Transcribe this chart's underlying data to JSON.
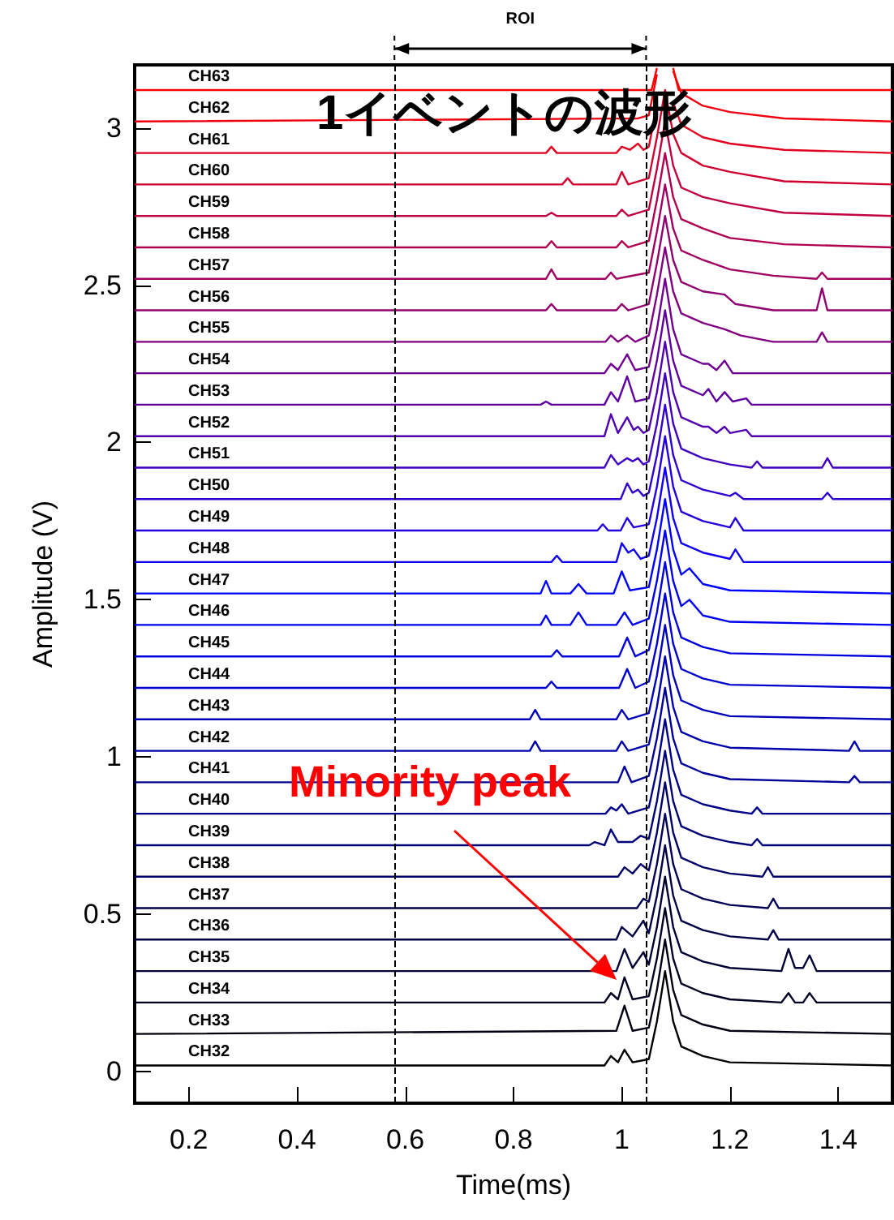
{
  "chart_data": {
    "type": "line",
    "title": "1イベントの波形",
    "xlabel": "Time(ms)",
    "ylabel": "Amplitude (V)",
    "xlim": [
      0.1,
      1.5
    ],
    "ylim": [
      -0.1,
      3.2
    ],
    "xticks": [
      0.2,
      0.4,
      0.6,
      0.8,
      1,
      1.2,
      1.4
    ],
    "yticks": [
      0,
      0.5,
      1,
      1.5,
      2,
      2.5,
      3
    ],
    "ref_lines": [
      {
        "axis": "x",
        "value": 0.58,
        "line_style": "dashed",
        "color": "#000000"
      },
      {
        "axis": "x",
        "value": 1.045,
        "line_style": "dashed",
        "color": "#000000"
      }
    ],
    "annotations": [
      "ROI",
      "Minority peak"
    ],
    "series": [
      {
        "name": "CH32",
        "color": "#000000",
        "x": [
          0.1,
          0.968,
          0.98,
          0.993,
          1.005,
          1.02,
          1.05,
          1.065,
          1.08,
          1.095,
          1.11,
          1.15,
          1.2,
          1.5
        ],
        "values": [
          0.02,
          0.02,
          0.05,
          0.03,
          0.07,
          0.03,
          0.04,
          0.16,
          0.32,
          0.16,
          0.08,
          0.05,
          0.03,
          0.02
        ]
      },
      {
        "name": "CH33",
        "color": "#000011",
        "x": [
          0.1,
          0.99,
          1.005,
          1.02,
          1.05,
          1.065,
          1.08,
          1.095,
          1.11,
          1.15,
          1.2,
          1.5
        ],
        "values": [
          0.12,
          0.13,
          0.21,
          0.13,
          0.14,
          0.26,
          0.42,
          0.26,
          0.18,
          0.15,
          0.13,
          0.12
        ]
      },
      {
        "name": "CH34",
        "color": "#000022",
        "x": [
          0.1,
          0.968,
          0.98,
          0.993,
          1.005,
          1.02,
          1.05,
          1.065,
          1.08,
          1.095,
          1.11,
          1.15,
          1.2,
          1.295,
          1.308,
          1.32,
          1.335,
          1.347,
          1.36,
          1.5
        ],
        "values": [
          0.22,
          0.22,
          0.25,
          0.23,
          0.3,
          0.23,
          0.24,
          0.36,
          0.52,
          0.36,
          0.28,
          0.25,
          0.23,
          0.22,
          0.25,
          0.22,
          0.22,
          0.25,
          0.22,
          0.22
        ]
      },
      {
        "name": "CH35",
        "color": "#000033",
        "x": [
          0.1,
          0.99,
          1.005,
          1.02,
          1.04,
          1.05,
          1.065,
          1.08,
          1.095,
          1.11,
          1.15,
          1.2,
          1.295,
          1.308,
          1.32,
          1.335,
          1.347,
          1.36,
          1.5
        ],
        "values": [
          0.32,
          0.32,
          0.39,
          0.33,
          0.38,
          0.34,
          0.46,
          0.62,
          0.46,
          0.38,
          0.35,
          0.33,
          0.32,
          0.39,
          0.33,
          0.33,
          0.37,
          0.32,
          0.32
        ]
      },
      {
        "name": "CH36",
        "color": "#000044",
        "x": [
          0.1,
          0.99,
          1.0,
          1.02,
          1.04,
          1.05,
          1.065,
          1.08,
          1.095,
          1.11,
          1.15,
          1.2,
          1.27,
          1.28,
          1.29,
          1.5
        ],
        "values": [
          0.42,
          0.42,
          0.46,
          0.43,
          0.48,
          0.44,
          0.56,
          0.72,
          0.56,
          0.48,
          0.45,
          0.43,
          0.42,
          0.45,
          0.42,
          0.42
        ]
      },
      {
        "name": "CH37",
        "color": "#000055",
        "x": [
          0.1,
          1.028,
          1.04,
          1.05,
          1.065,
          1.08,
          1.095,
          1.11,
          1.15,
          1.2,
          1.27,
          1.28,
          1.29,
          1.5
        ],
        "values": [
          0.52,
          0.52,
          0.55,
          0.54,
          0.66,
          0.82,
          0.66,
          0.58,
          0.55,
          0.53,
          0.52,
          0.55,
          0.52,
          0.52
        ]
      },
      {
        "name": "CH38",
        "color": "#000066",
        "x": [
          0.1,
          0.993,
          1.005,
          1.02,
          1.035,
          1.05,
          1.065,
          1.08,
          1.095,
          1.11,
          1.15,
          1.2,
          1.26,
          1.27,
          1.28,
          1.5
        ],
        "values": [
          0.62,
          0.62,
          0.65,
          0.63,
          0.66,
          0.64,
          0.76,
          0.92,
          0.76,
          0.68,
          0.65,
          0.63,
          0.62,
          0.65,
          0.62,
          0.62
        ]
      },
      {
        "name": "CH39",
        "color": "#000077",
        "x": [
          0.1,
          0.94,
          0.95,
          0.968,
          0.98,
          0.993,
          1.02,
          1.035,
          1.05,
          1.065,
          1.08,
          1.095,
          1.11,
          1.15,
          1.2,
          1.24,
          1.25,
          1.26,
          1.5
        ],
        "values": [
          0.72,
          0.72,
          0.73,
          0.72,
          0.77,
          0.73,
          0.73,
          0.75,
          0.74,
          0.86,
          1.02,
          0.86,
          0.78,
          0.75,
          0.73,
          0.72,
          0.74,
          0.72,
          0.72
        ]
      },
      {
        "name": "CH40",
        "color": "#000088",
        "x": [
          0.1,
          0.97,
          0.98,
          0.99,
          1.0,
          1.012,
          1.05,
          1.065,
          1.08,
          1.095,
          1.11,
          1.15,
          1.2,
          1.24,
          1.25,
          1.26,
          1.5
        ],
        "values": [
          0.82,
          0.82,
          0.84,
          0.83,
          0.85,
          0.82,
          0.84,
          0.96,
          1.12,
          0.96,
          0.88,
          0.85,
          0.83,
          0.82,
          0.84,
          0.82,
          0.82
        ]
      },
      {
        "name": "CH41",
        "color": "#000099",
        "x": [
          0.1,
          0.993,
          1.005,
          1.018,
          1.05,
          1.065,
          1.08,
          1.095,
          1.11,
          1.15,
          1.2,
          1.42,
          1.43,
          1.44,
          1.5
        ],
        "values": [
          0.92,
          0.92,
          0.97,
          0.92,
          0.94,
          1.06,
          1.22,
          1.06,
          0.98,
          0.95,
          0.93,
          0.92,
          0.94,
          0.92,
          0.92
        ]
      },
      {
        "name": "CH42",
        "color": "#0000aa",
        "x": [
          0.1,
          0.83,
          0.84,
          0.85,
          0.99,
          1.0,
          1.012,
          1.05,
          1.065,
          1.08,
          1.095,
          1.11,
          1.15,
          1.2,
          1.42,
          1.43,
          1.44,
          1.5
        ],
        "values": [
          1.02,
          1.02,
          1.05,
          1.02,
          1.02,
          1.05,
          1.02,
          1.04,
          1.16,
          1.32,
          1.16,
          1.08,
          1.05,
          1.03,
          1.02,
          1.05,
          1.02,
          1.02
        ]
      },
      {
        "name": "CH43",
        "color": "#0000bb",
        "x": [
          0.1,
          0.83,
          0.84,
          0.85,
          0.99,
          1.0,
          1.012,
          1.05,
          1.065,
          1.08,
          1.095,
          1.11,
          1.15,
          1.2,
          1.5
        ],
        "values": [
          1.12,
          1.12,
          1.15,
          1.12,
          1.12,
          1.15,
          1.12,
          1.14,
          1.26,
          1.42,
          1.26,
          1.18,
          1.15,
          1.13,
          1.12
        ]
      },
      {
        "name": "CH44",
        "color": "#0000cc",
        "x": [
          0.1,
          0.86,
          0.87,
          0.88,
          0.995,
          1.01,
          1.025,
          1.05,
          1.065,
          1.08,
          1.095,
          1.11,
          1.15,
          1.2,
          1.5
        ],
        "values": [
          1.22,
          1.22,
          1.24,
          1.22,
          1.22,
          1.28,
          1.22,
          1.24,
          1.36,
          1.52,
          1.36,
          1.28,
          1.25,
          1.23,
          1.22
        ]
      },
      {
        "name": "CH45",
        "color": "#0000dd",
        "x": [
          0.1,
          0.87,
          0.88,
          0.89,
          0.995,
          1.01,
          1.025,
          1.05,
          1.065,
          1.08,
          1.095,
          1.11,
          1.15,
          1.2,
          1.5
        ],
        "values": [
          1.32,
          1.32,
          1.34,
          1.32,
          1.32,
          1.38,
          1.32,
          1.34,
          1.46,
          1.62,
          1.46,
          1.38,
          1.35,
          1.33,
          1.32
        ]
      },
      {
        "name": "CH46",
        "color": "#0000ee",
        "x": [
          0.1,
          0.85,
          0.86,
          0.87,
          0.905,
          0.92,
          0.935,
          0.99,
          1.005,
          1.02,
          1.05,
          1.065,
          1.08,
          1.095,
          1.11,
          1.125,
          1.15,
          1.2,
          1.5
        ],
        "values": [
          1.42,
          1.42,
          1.45,
          1.42,
          1.42,
          1.46,
          1.42,
          1.42,
          1.46,
          1.42,
          1.44,
          1.56,
          1.72,
          1.56,
          1.48,
          1.5,
          1.45,
          1.43,
          1.42
        ]
      },
      {
        "name": "CH47",
        "color": "#0000ff",
        "x": [
          0.1,
          0.85,
          0.86,
          0.87,
          0.905,
          0.92,
          0.935,
          0.985,
          1.0,
          1.015,
          1.05,
          1.065,
          1.08,
          1.095,
          1.11,
          1.125,
          1.15,
          1.2,
          1.5
        ],
        "values": [
          1.52,
          1.52,
          1.56,
          1.52,
          1.52,
          1.55,
          1.52,
          1.52,
          1.59,
          1.53,
          1.54,
          1.66,
          1.82,
          1.66,
          1.58,
          1.6,
          1.55,
          1.53,
          1.52
        ]
      },
      {
        "name": "CH48",
        "color": "#1000ef",
        "x": [
          0.1,
          0.87,
          0.88,
          0.89,
          0.99,
          1.0,
          1.012,
          1.022,
          1.035,
          1.05,
          1.065,
          1.08,
          1.095,
          1.11,
          1.15,
          1.2,
          1.21,
          1.225,
          1.5
        ],
        "values": [
          1.62,
          1.62,
          1.64,
          1.62,
          1.62,
          1.68,
          1.65,
          1.66,
          1.63,
          1.64,
          1.76,
          1.92,
          1.76,
          1.68,
          1.65,
          1.63,
          1.66,
          1.62,
          1.62
        ]
      },
      {
        "name": "CH49",
        "color": "#2000df",
        "x": [
          0.1,
          0.955,
          0.965,
          0.975,
          0.998,
          1.01,
          1.022,
          1.05,
          1.065,
          1.08,
          1.095,
          1.11,
          1.15,
          1.2,
          1.21,
          1.225,
          1.5
        ],
        "values": [
          1.72,
          1.72,
          1.74,
          1.72,
          1.72,
          1.76,
          1.73,
          1.74,
          1.86,
          2.02,
          1.86,
          1.78,
          1.75,
          1.73,
          1.76,
          1.72,
          1.72
        ]
      },
      {
        "name": "CH50",
        "color": "#3000cf",
        "x": [
          0.1,
          0.998,
          1.01,
          1.02,
          1.03,
          1.04,
          1.05,
          1.065,
          1.08,
          1.095,
          1.11,
          1.15,
          1.2,
          1.21,
          1.225,
          1.37,
          1.38,
          1.39,
          1.5
        ],
        "values": [
          1.82,
          1.82,
          1.87,
          1.84,
          1.85,
          1.83,
          1.84,
          1.96,
          2.12,
          1.96,
          1.88,
          1.85,
          1.83,
          1.84,
          1.82,
          1.82,
          1.84,
          1.82,
          1.82
        ]
      },
      {
        "name": "CH51",
        "color": "#4000bf",
        "x": [
          0.1,
          0.968,
          0.98,
          0.993,
          1.01,
          1.02,
          1.03,
          1.04,
          1.05,
          1.065,
          1.08,
          1.095,
          1.11,
          1.15,
          1.2,
          1.24,
          1.25,
          1.26,
          1.37,
          1.38,
          1.39,
          1.5
        ],
        "values": [
          1.92,
          1.92,
          1.96,
          1.93,
          1.95,
          1.94,
          1.95,
          1.93,
          1.94,
          2.06,
          2.22,
          2.06,
          1.98,
          1.95,
          1.93,
          1.92,
          1.94,
          1.92,
          1.92,
          1.95,
          1.92,
          1.92
        ]
      },
      {
        "name": "CH52",
        "color": "#5000af",
        "x": [
          0.1,
          0.968,
          0.98,
          0.993,
          1.01,
          1.022,
          1.03,
          1.04,
          1.05,
          1.065,
          1.08,
          1.095,
          1.11,
          1.15,
          1.16,
          1.175,
          1.19,
          1.2,
          1.23,
          1.24,
          1.5
        ],
        "values": [
          2.02,
          2.02,
          2.09,
          2.03,
          2.08,
          2.04,
          2.05,
          2.03,
          2.04,
          2.16,
          2.32,
          2.16,
          2.08,
          2.05,
          2.05,
          2.03,
          2.05,
          2.03,
          2.04,
          2.02,
          2.02
        ]
      },
      {
        "name": "CH53",
        "color": "#60009f",
        "x": [
          0.1,
          0.85,
          0.86,
          0.87,
          0.968,
          0.98,
          0.993,
          1.01,
          1.025,
          1.05,
          1.065,
          1.08,
          1.095,
          1.11,
          1.15,
          1.16,
          1.175,
          1.19,
          1.205,
          1.23,
          1.24,
          1.5
        ],
        "values": [
          2.12,
          2.12,
          2.13,
          2.12,
          2.12,
          2.16,
          2.13,
          2.21,
          2.13,
          2.14,
          2.26,
          2.42,
          2.26,
          2.18,
          2.15,
          2.17,
          2.13,
          2.16,
          2.13,
          2.14,
          2.12,
          2.12
        ]
      },
      {
        "name": "CH54",
        "color": "#70008f",
        "x": [
          0.1,
          0.968,
          0.98,
          0.993,
          1.01,
          1.025,
          1.05,
          1.065,
          1.08,
          1.095,
          1.11,
          1.15,
          1.16,
          1.175,
          1.19,
          1.205,
          1.5
        ],
        "values": [
          2.22,
          2.22,
          2.25,
          2.23,
          2.28,
          2.23,
          2.24,
          2.36,
          2.52,
          2.36,
          2.28,
          2.25,
          2.25,
          2.23,
          2.26,
          2.22,
          2.22
        ]
      },
      {
        "name": "CH55",
        "color": "#80007f",
        "x": [
          0.1,
          0.97,
          0.98,
          0.993,
          1.01,
          1.025,
          1.05,
          1.065,
          1.08,
          1.095,
          1.11,
          1.15,
          1.19,
          1.22,
          1.28,
          1.36,
          1.37,
          1.38,
          1.5
        ],
        "values": [
          2.32,
          2.32,
          2.34,
          2.32,
          2.34,
          2.32,
          2.34,
          2.47,
          2.62,
          2.48,
          2.41,
          2.38,
          2.36,
          2.34,
          2.32,
          2.32,
          2.35,
          2.32,
          2.32
        ]
      },
      {
        "name": "CH56",
        "color": "#90006f",
        "x": [
          0.1,
          0.86,
          0.87,
          0.88,
          0.99,
          1.0,
          1.012,
          1.05,
          1.065,
          1.08,
          1.095,
          1.11,
          1.15,
          1.19,
          1.21,
          1.28,
          1.36,
          1.37,
          1.38,
          1.5
        ],
        "values": [
          2.42,
          2.42,
          2.44,
          2.42,
          2.42,
          2.44,
          2.42,
          2.44,
          2.57,
          2.72,
          2.58,
          2.51,
          2.48,
          2.47,
          2.44,
          2.42,
          2.42,
          2.49,
          2.42,
          2.42
        ]
      },
      {
        "name": "CH57",
        "color": "#a0005f",
        "x": [
          0.1,
          0.86,
          0.87,
          0.88,
          0.97,
          0.98,
          0.99,
          1.05,
          1.065,
          1.08,
          1.095,
          1.11,
          1.15,
          1.2,
          1.28,
          1.36,
          1.37,
          1.38,
          1.5
        ],
        "values": [
          2.52,
          2.52,
          2.55,
          2.52,
          2.52,
          2.54,
          2.52,
          2.54,
          2.67,
          2.82,
          2.68,
          2.61,
          2.58,
          2.55,
          2.53,
          2.52,
          2.54,
          2.52,
          2.52
        ]
      },
      {
        "name": "CH58",
        "color": "#b0004f",
        "x": [
          0.1,
          0.86,
          0.87,
          0.88,
          0.99,
          1.0,
          1.012,
          1.05,
          1.065,
          1.08,
          1.095,
          1.11,
          1.15,
          1.2,
          1.3,
          1.5
        ],
        "values": [
          2.62,
          2.62,
          2.64,
          2.62,
          2.62,
          2.64,
          2.62,
          2.64,
          2.77,
          2.92,
          2.78,
          2.71,
          2.68,
          2.65,
          2.63,
          2.62
        ]
      },
      {
        "name": "CH59",
        "color": "#c0003f",
        "x": [
          0.1,
          0.86,
          0.87,
          0.88,
          0.99,
          1.0,
          1.012,
          1.05,
          1.065,
          1.08,
          1.095,
          1.11,
          1.15,
          1.2,
          1.3,
          1.5
        ],
        "values": [
          2.72,
          2.72,
          2.73,
          2.72,
          2.72,
          2.74,
          2.72,
          2.74,
          2.87,
          3.02,
          2.88,
          2.81,
          2.78,
          2.76,
          2.73,
          2.72
        ]
      },
      {
        "name": "CH60",
        "color": "#d0002f",
        "x": [
          0.1,
          0.89,
          0.9,
          0.91,
          0.99,
          1.0,
          1.012,
          1.05,
          1.065,
          1.08,
          1.095,
          1.11,
          1.15,
          1.2,
          1.3,
          1.5
        ],
        "values": [
          2.82,
          2.82,
          2.84,
          2.82,
          2.82,
          2.86,
          2.82,
          2.84,
          2.97,
          3.12,
          2.98,
          2.92,
          2.88,
          2.86,
          2.83,
          2.82
        ]
      },
      {
        "name": "CH61",
        "color": "#e0001f",
        "x": [
          0.1,
          0.86,
          0.87,
          0.88,
          0.99,
          1.0,
          1.015,
          1.03,
          1.04,
          1.05,
          1.065,
          1.08,
          1.095,
          1.11,
          1.15,
          1.2,
          1.3,
          1.5
        ],
        "values": [
          2.92,
          2.92,
          2.94,
          2.92,
          2.92,
          2.94,
          2.93,
          2.95,
          2.93,
          2.94,
          3.07,
          null,
          3.08,
          3.01,
          2.97,
          2.95,
          2.93,
          2.92
        ]
      },
      {
        "name": "CH62",
        "color": "#f0000f",
        "x": [
          0.1,
          1.03,
          1.05,
          1.065,
          1.08,
          1.095,
          1.11,
          1.15,
          1.2,
          1.3,
          1.5
        ],
        "values": [
          3.02,
          3.03,
          3.04,
          3.17,
          null,
          3.18,
          3.11,
          3.07,
          3.05,
          3.03,
          3.02
        ]
      },
      {
        "name": "CH63",
        "color": "#ff0000",
        "x": [
          0.1,
          1.055,
          1.065,
          1.08,
          1.095,
          1.105,
          1.5
        ],
        "values": [
          3.12,
          3.12,
          3.19,
          null,
          3.19,
          3.12,
          3.12
        ]
      }
    ]
  }
}
